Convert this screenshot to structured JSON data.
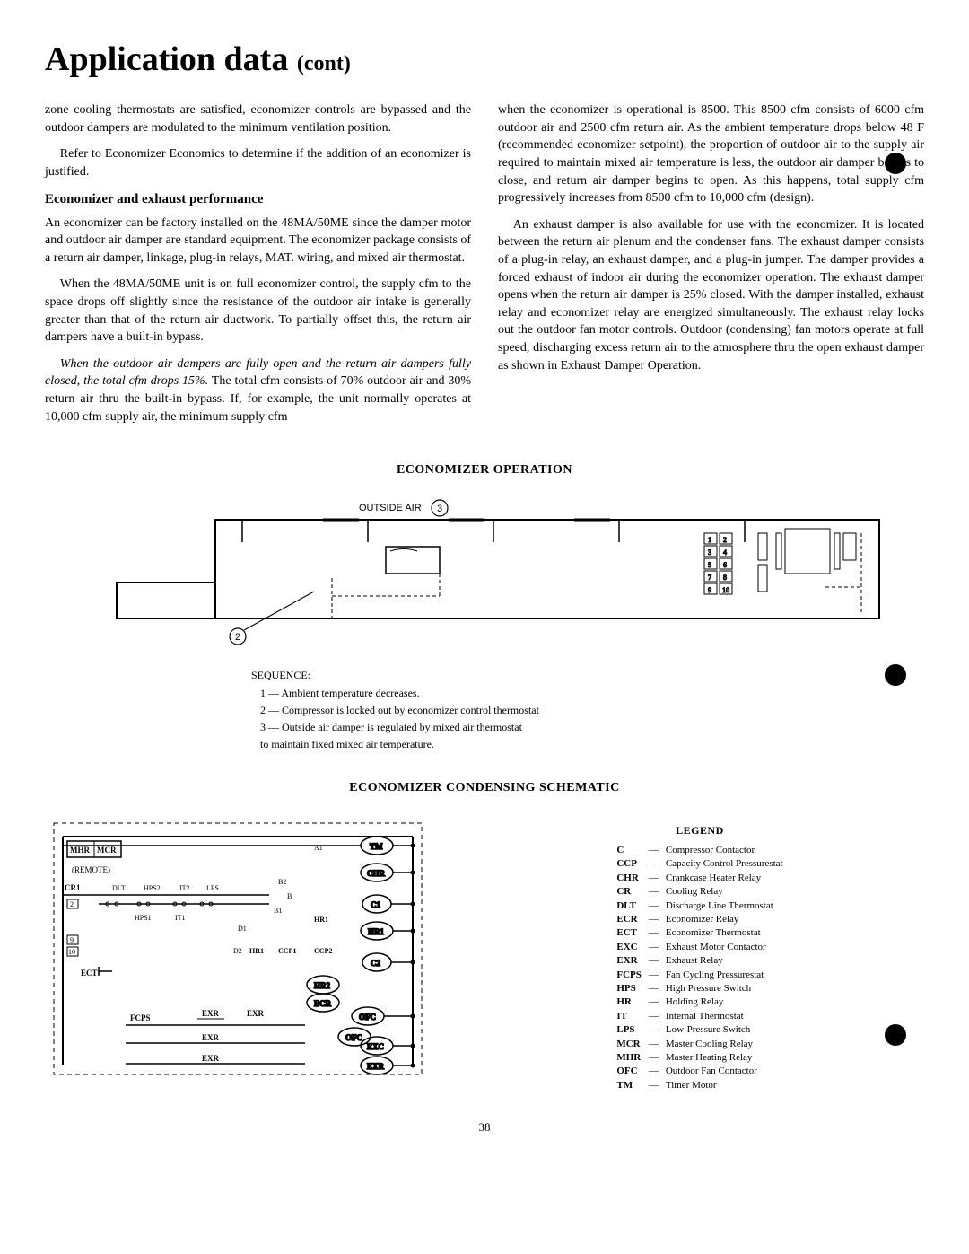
{
  "title_main": "Application data",
  "title_cont": "(cont)",
  "left_col": {
    "p1": "zone cooling thermostats are satisfied, economizer controls are bypassed and the outdoor dampers are modulated to the minimum ventilation position.",
    "p2": "Refer to Economizer Economics to determine if the addition of an economizer is justified.",
    "subhead": "Economizer and exhaust performance",
    "p3": "An economizer can be factory installed on the 48MA/50ME since the damper motor and outdoor air damper are standard equipment. The economizer package consists of a return air damper, linkage, plug-in relays, MAT. wiring, and mixed air thermostat.",
    "p4": "When the 48MA/50ME unit is on full economizer control, the supply cfm to the space drops off slightly since the resistance of the outdoor air intake is generally greater than that of the return air ductwork. To partially offset this, the return air dampers have a built-in bypass.",
    "p5a": "When the outdoor air dampers are fully open and the return air dampers fully closed, the total cfm drops 15%.",
    "p5b": " The total cfm consists of 70% outdoor air and 30% return air thru the built-in bypass. If, for example, the unit normally operates at 10,000 cfm supply air, the minimum supply cfm"
  },
  "right_col": {
    "p1": "when the economizer is operational is 8500. This 8500 cfm consists of 6000 cfm outdoor air and 2500 cfm return air. As the ambient temperature drops below 48 F (recommended economizer setpoint), the proportion of outdoor air to the supply air required to maintain mixed air temperature is less, the outdoor air damper begins to close, and return air damper begins to open. As this happens, total supply cfm progressively increases from 8500 cfm to 10,000 cfm (design).",
    "p2": "An exhaust damper is also available for use with the economizer. It is located between the return air plenum and the condenser fans. The exhaust damper consists of a plug-in relay, an exhaust damper, and a plug-in jumper. The damper provides a forced exhaust of indoor air during the economizer operation. The exhaust damper opens when the return air damper is 25% closed. With the damper installed, exhaust relay and economizer relay are energized simultaneously. The exhaust relay locks out the outdoor fan motor controls. Outdoor (condensing) fan motors operate at full speed, discharging excess return air to the atmosphere thru the open exhaust damper as shown in Exhaust Damper Operation."
  },
  "econ_op_title": "ECONOMIZER OPERATION",
  "diagram1": {
    "outside_air_label": "OUTSIDE AIR",
    "circle3": "3",
    "circle2": "2"
  },
  "sequence": {
    "label": "SEQUENCE:",
    "items": [
      "1  —  Ambient temperature decreases.",
      "2  —  Compressor is locked out by economizer control thermostat",
      "3  —  Outside air damper is regulated by mixed air thermostat",
      "        to maintain fixed mixed air temperature."
    ]
  },
  "schematic_title": "ECONOMIZER CONDENSING SCHEMATIC",
  "legend": {
    "title": "LEGEND",
    "items": [
      {
        "abbr": "C",
        "def": "Compressor Contactor"
      },
      {
        "abbr": "CCP",
        "def": "Capacity Control Pressurestat"
      },
      {
        "abbr": "CHR",
        "def": "Crankcase Heater Relay"
      },
      {
        "abbr": "CR",
        "def": "Cooling Relay"
      },
      {
        "abbr": "DLT",
        "def": "Discharge Line Thermostat"
      },
      {
        "abbr": "ECR",
        "def": "Economizer Relay"
      },
      {
        "abbr": "ECT",
        "def": "Economizer Thermostat"
      },
      {
        "abbr": "EXC",
        "def": "Exhaust Motor Contactor"
      },
      {
        "abbr": "EXR",
        "def": "Exhaust Relay"
      },
      {
        "abbr": "FCPS",
        "def": "Fan Cycling Pressurestat"
      },
      {
        "abbr": "HPS",
        "def": "High Pressure Switch"
      },
      {
        "abbr": "HR",
        "def": "Holding Relay"
      },
      {
        "abbr": "IT",
        "def": "Internal Thermostat"
      },
      {
        "abbr": "LPS",
        "def": "Low-Pressure Switch"
      },
      {
        "abbr": "MCR",
        "def": "Master Cooling Relay"
      },
      {
        "abbr": "MHR",
        "def": "Master Heating Relay"
      },
      {
        "abbr": "OFC",
        "def": "Outdoor Fan Contactor"
      },
      {
        "abbr": "TM",
        "def": "Timer Motor"
      }
    ]
  },
  "schematic_labels": {
    "mhr": "MHR",
    "mcr": "MCR",
    "remote": "(REMOTE)",
    "cr1": "CR1",
    "dlt": "DLT",
    "hps2": "HPS2",
    "it2": "IT2",
    "lps": "LPS",
    "hps1": "HPS1",
    "it1": "IT1",
    "b2": "B2",
    "b": "B",
    "b1": "B1",
    "a1": "A1",
    "d1": "D1",
    "d2": "D2",
    "n2": "2",
    "n9": "9",
    "n10": "10",
    "ect": "ECT",
    "fcps": "FCPS",
    "exr": "EXR",
    "hr1": "HR1",
    "hr2": "HR2",
    "ccp1": "CCP1",
    "ccp2": "CCP2",
    "tm": "TM",
    "chr": "CHR",
    "c1": "C1",
    "c2": "C2",
    "ecr": "ECR",
    "ofc1": "OFC",
    "ofc2": "OFC",
    "exc": "EXC",
    "exr2": "EXR"
  },
  "page_num": "38"
}
